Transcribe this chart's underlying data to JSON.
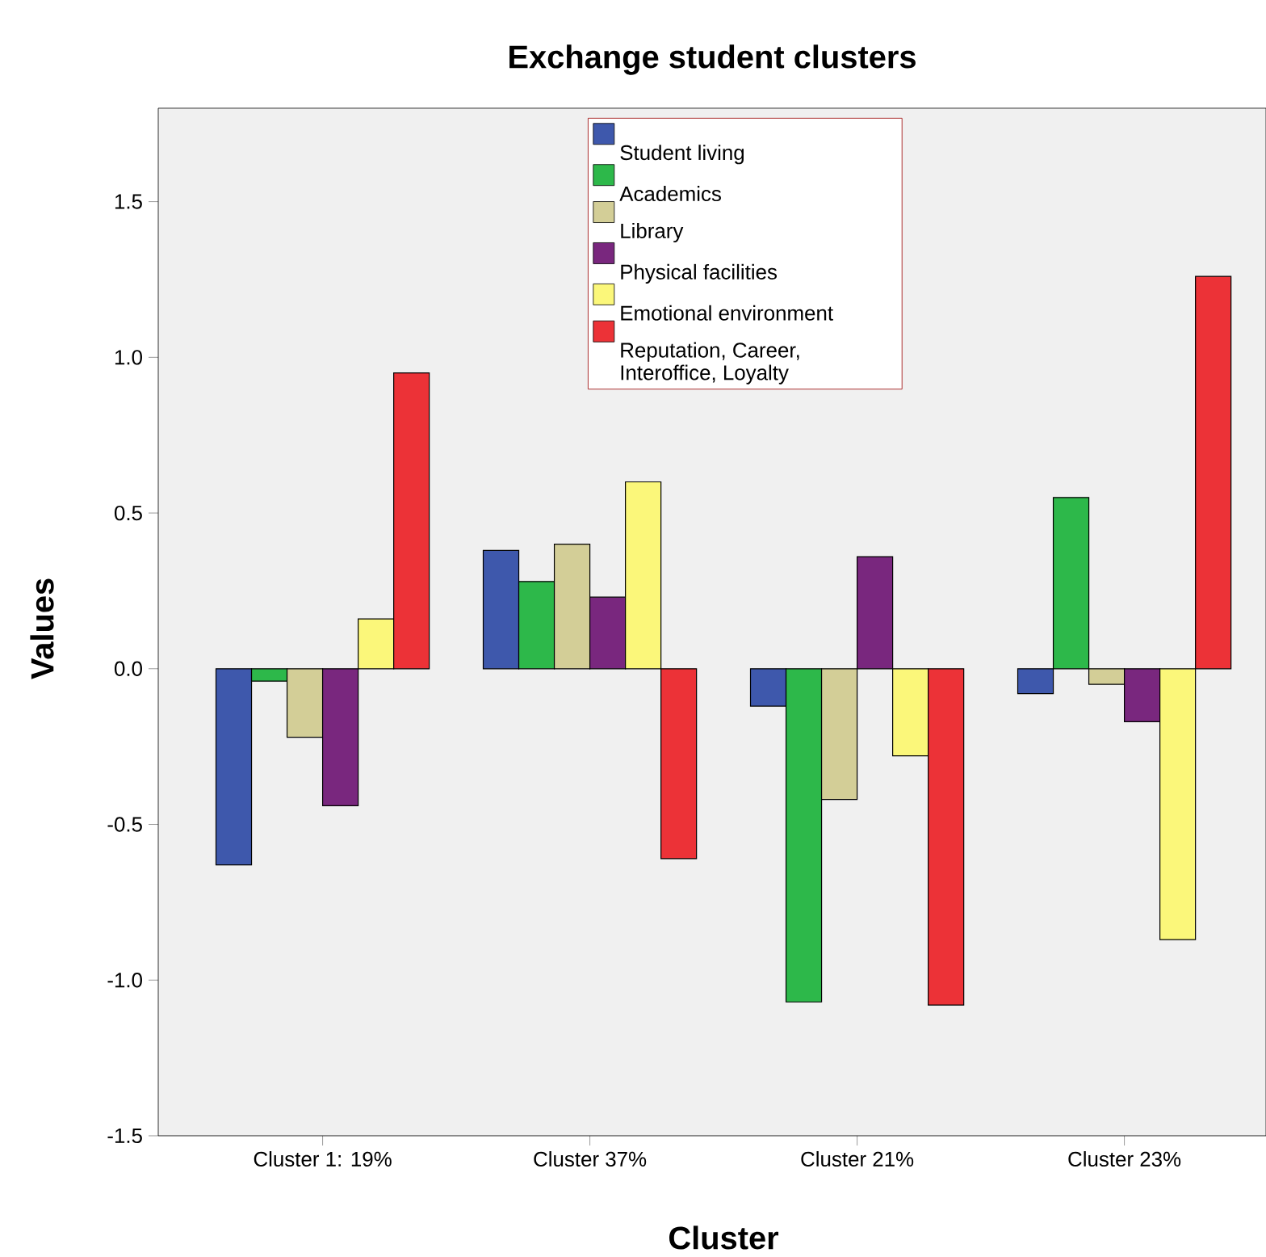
{
  "chart_data": {
    "type": "bar",
    "title": "Exchange student clusters",
    "xlabel": "Cluster",
    "ylabel": "Values",
    "categories": [
      "Cluster 1: 19%",
      "Cluster 37%",
      "Cluster 21%",
      "Cluster 23%"
    ],
    "series": [
      {
        "name": "Student living",
        "color": "#3e58ac",
        "values": [
          -0.63,
          0.38,
          -0.12,
          -0.08
        ]
      },
      {
        "name": "Academics",
        "color": "#2db84a",
        "values": [
          -0.04,
          0.28,
          -1.07,
          0.55
        ]
      },
      {
        "name": "Library",
        "color": "#d3ce97",
        "values": [
          -0.22,
          0.4,
          -0.42,
          -0.05
        ]
      },
      {
        "name": "Physical facilities",
        "color": "#79277e",
        "values": [
          -0.44,
          0.23,
          0.36,
          -0.17
        ]
      },
      {
        "name": "Emotional environment",
        "color": "#fbf77a",
        "values": [
          0.16,
          0.6,
          -0.28,
          -0.87
        ]
      },
      {
        "name": "Reputation, Career, Interoffice, Loyalty",
        "color": "#ec3237",
        "values": [
          0.95,
          -0.61,
          -1.08,
          1.26
        ]
      }
    ],
    "ylim": [
      -1.5,
      1.8
    ],
    "yticks": [
      {
        "value": -1.5,
        "label": "-1.5"
      },
      {
        "value": -1,
        "label": "-1.0"
      },
      {
        "value": -0.5,
        "label": "-0.5"
      },
      {
        "value": 0,
        "label": "0.0"
      },
      {
        "value": 0.5,
        "label": "0.5"
      },
      {
        "value": 1,
        "label": "1.0"
      },
      {
        "value": 1.5,
        "label": "1.5"
      }
    ],
    "grid": false,
    "legend": "top"
  }
}
